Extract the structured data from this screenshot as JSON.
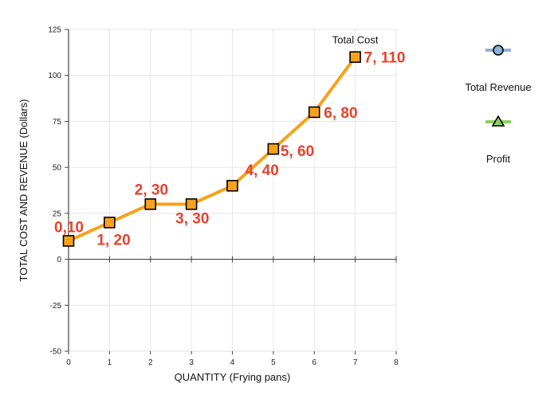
{
  "chart_data": {
    "type": "line",
    "xlabel": "QUANTITY (Frying pans)",
    "ylabel": "TOTAL COST AND REVENUE (Dollars)",
    "xlim": [
      0,
      8
    ],
    "ylim": [
      -50,
      125
    ],
    "xticks": [
      0,
      1,
      2,
      3,
      4,
      5,
      6,
      7,
      8
    ],
    "yticks": [
      -50,
      -25,
      0,
      25,
      50,
      75,
      100,
      125
    ],
    "grid": true,
    "series": [
      {
        "name": "Total Cost",
        "color": "#f7a21b",
        "marker": "square",
        "marker_fill": "#f7a21b",
        "x": [
          0,
          1,
          2,
          3,
          4,
          5,
          6,
          7
        ],
        "y": [
          10,
          20,
          30,
          30,
          40,
          60,
          80,
          110
        ],
        "point_labels": [
          "0,10",
          "1, 20",
          "2, 30",
          "3, 30",
          "4, 40",
          "5, 60",
          "6, 80",
          "7, 110"
        ]
      }
    ],
    "series_label": "Total Cost",
    "label_color": "#e8412c",
    "legend": {
      "placement": "right",
      "items": [
        {
          "name": "",
          "color": "#8eb1d8",
          "marker": "circle",
          "marker_fill": "#8eb1d8"
        },
        {
          "name": "Total Revenue",
          "color": "#8fd05a",
          "marker": "triangle",
          "marker_fill": "#8fd05a"
        },
        {
          "name": "Profit"
        }
      ]
    }
  }
}
